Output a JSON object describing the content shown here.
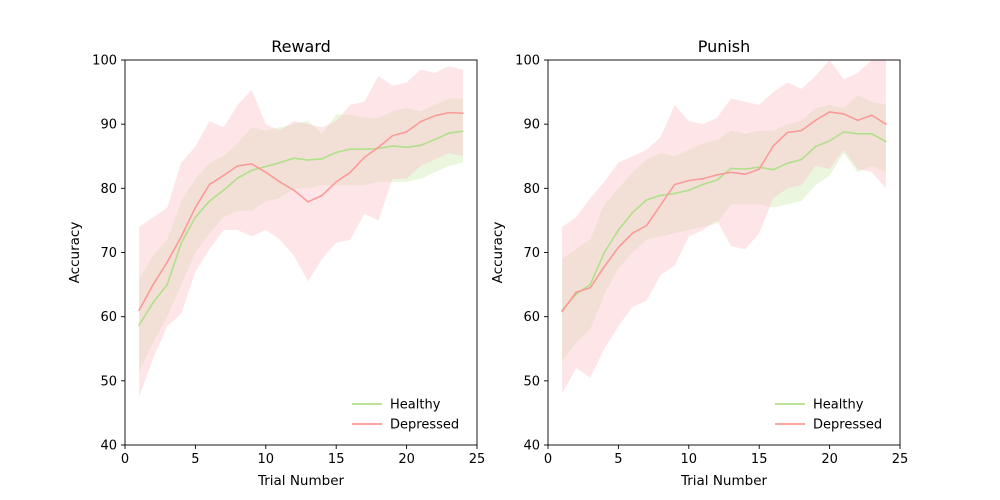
{
  "colors": {
    "healthy_line": "#b2df8a",
    "healthy_band": "#b2df8a",
    "depressed_line": "#fb9a99",
    "depressed_band": "#fcc5cc"
  },
  "legend": {
    "healthy": "Healthy",
    "depressed": "Depressed",
    "placement": "lower-right"
  },
  "chart_data": [
    {
      "type": "line",
      "title": "Reward",
      "xlabel": "Trial Number",
      "ylabel": "Accuracy",
      "xlim": [
        0,
        25
      ],
      "ylim": [
        40,
        100
      ],
      "xticks": [
        0,
        5,
        10,
        15,
        20,
        25
      ],
      "yticks": [
        40,
        50,
        60,
        70,
        80,
        90,
        100
      ],
      "grid": false,
      "x": [
        1,
        2,
        3,
        4,
        5,
        6,
        7,
        8,
        9,
        10,
        11,
        12,
        13,
        14,
        15,
        16,
        17,
        18,
        19,
        20,
        21,
        22,
        23,
        24
      ],
      "series": [
        {
          "name": "Healthy",
          "values": [
            58.7,
            62.2,
            65.0,
            71.5,
            75.5,
            78.0,
            79.7,
            81.6,
            82.8,
            83.4,
            84.0,
            84.7,
            84.4,
            84.6,
            85.6,
            86.1,
            86.1,
            86.2,
            86.6,
            86.4,
            86.7,
            87.6,
            88.6,
            88.9
          ],
          "lower": [
            51.5,
            56.0,
            60.0,
            65.0,
            70.0,
            73.0,
            75.5,
            76.5,
            76.5,
            78.0,
            78.5,
            80.0,
            80.0,
            80.5,
            80.5,
            80.5,
            80.5,
            81.0,
            81.0,
            81.0,
            81.5,
            82.5,
            83.5,
            84.0
          ],
          "upper": [
            66.0,
            69.5,
            72.0,
            78.0,
            81.5,
            84.0,
            85.0,
            87.0,
            89.5,
            89.0,
            89.5,
            90.0,
            90.5,
            88.5,
            91.5,
            91.5,
            91.0,
            91.0,
            92.0,
            92.5,
            92.0,
            93.0,
            94.0,
            94.0
          ]
        },
        {
          "name": "Depressed",
          "values": [
            61.0,
            65.0,
            68.5,
            72.5,
            77.0,
            80.6,
            82.0,
            83.5,
            83.8,
            82.5,
            81.0,
            79.7,
            77.9,
            78.9,
            81.0,
            82.5,
            84.8,
            86.4,
            88.2,
            88.8,
            90.4,
            91.3,
            91.8,
            91.7
          ],
          "lower": [
            47.5,
            53.5,
            58.5,
            60.5,
            67.0,
            70.5,
            73.5,
            73.5,
            72.5,
            73.5,
            72.0,
            69.5,
            65.5,
            69.0,
            71.5,
            72.0,
            76.0,
            75.0,
            81.5,
            81.5,
            83.5,
            84.5,
            85.5,
            85.0
          ],
          "upper": [
            74.0,
            75.5,
            77.0,
            84.0,
            86.5,
            90.5,
            89.5,
            93.0,
            95.3,
            90.0,
            89.0,
            90.5,
            90.0,
            89.5,
            90.5,
            93.0,
            93.5,
            97.5,
            96.0,
            96.5,
            98.5,
            98.0,
            99.0,
            98.5
          ]
        }
      ]
    },
    {
      "type": "line",
      "title": "Punish",
      "xlabel": "Trial Number",
      "ylabel": "Accuracy",
      "xlim": [
        0,
        25
      ],
      "ylim": [
        40,
        100
      ],
      "xticks": [
        0,
        5,
        10,
        15,
        20,
        25
      ],
      "yticks": [
        40,
        50,
        60,
        70,
        80,
        90,
        100
      ],
      "grid": false,
      "x": [
        1,
        2,
        3,
        4,
        5,
        6,
        7,
        8,
        9,
        10,
        11,
        12,
        13,
        14,
        15,
        16,
        17,
        18,
        19,
        20,
        21,
        22,
        23,
        24
      ],
      "series": [
        {
          "name": "Healthy",
          "values": [
            61.0,
            63.5,
            65.0,
            70.0,
            73.5,
            76.2,
            78.2,
            78.9,
            79.2,
            79.7,
            80.6,
            81.3,
            83.1,
            83.0,
            83.3,
            82.9,
            83.9,
            84.5,
            86.5,
            87.4,
            88.8,
            88.5,
            88.5,
            87.3
          ],
          "lower": [
            53.0,
            56.0,
            58.0,
            63.5,
            67.5,
            70.0,
            72.0,
            72.5,
            73.0,
            73.5,
            74.0,
            74.5,
            77.5,
            77.5,
            77.5,
            77.0,
            77.5,
            78.0,
            80.5,
            82.0,
            85.5,
            82.5,
            83.5,
            82.5
          ],
          "upper": [
            69.0,
            70.5,
            72.0,
            77.5,
            80.0,
            82.5,
            84.5,
            85.5,
            85.0,
            86.0,
            87.0,
            87.5,
            89.0,
            88.5,
            89.0,
            89.0,
            90.0,
            90.5,
            92.5,
            93.0,
            92.5,
            94.5,
            93.5,
            93.0
          ]
        },
        {
          "name": "Depressed",
          "values": [
            60.8,
            63.8,
            64.5,
            67.8,
            70.8,
            73.0,
            74.2,
            77.4,
            80.6,
            81.2,
            81.5,
            82.1,
            82.5,
            82.2,
            83.0,
            86.6,
            88.7,
            89.0,
            90.6,
            91.9,
            91.6,
            90.6,
            91.4,
            90.0
          ],
          "lower": [
            48.0,
            52.0,
            50.5,
            55.0,
            58.5,
            61.5,
            62.5,
            66.5,
            68.0,
            72.5,
            73.5,
            75.0,
            71.0,
            70.5,
            73.0,
            78.5,
            80.0,
            80.5,
            83.5,
            83.0,
            86.0,
            83.0,
            82.5,
            80.0
          ],
          "upper": [
            74.0,
            75.5,
            78.5,
            81.0,
            84.0,
            85.0,
            86.0,
            88.0,
            93.0,
            90.5,
            90.0,
            91.0,
            94.0,
            93.5,
            93.0,
            95.0,
            96.5,
            95.5,
            97.5,
            100.0,
            97.0,
            98.0,
            100.0,
            100.0
          ]
        }
      ]
    }
  ]
}
